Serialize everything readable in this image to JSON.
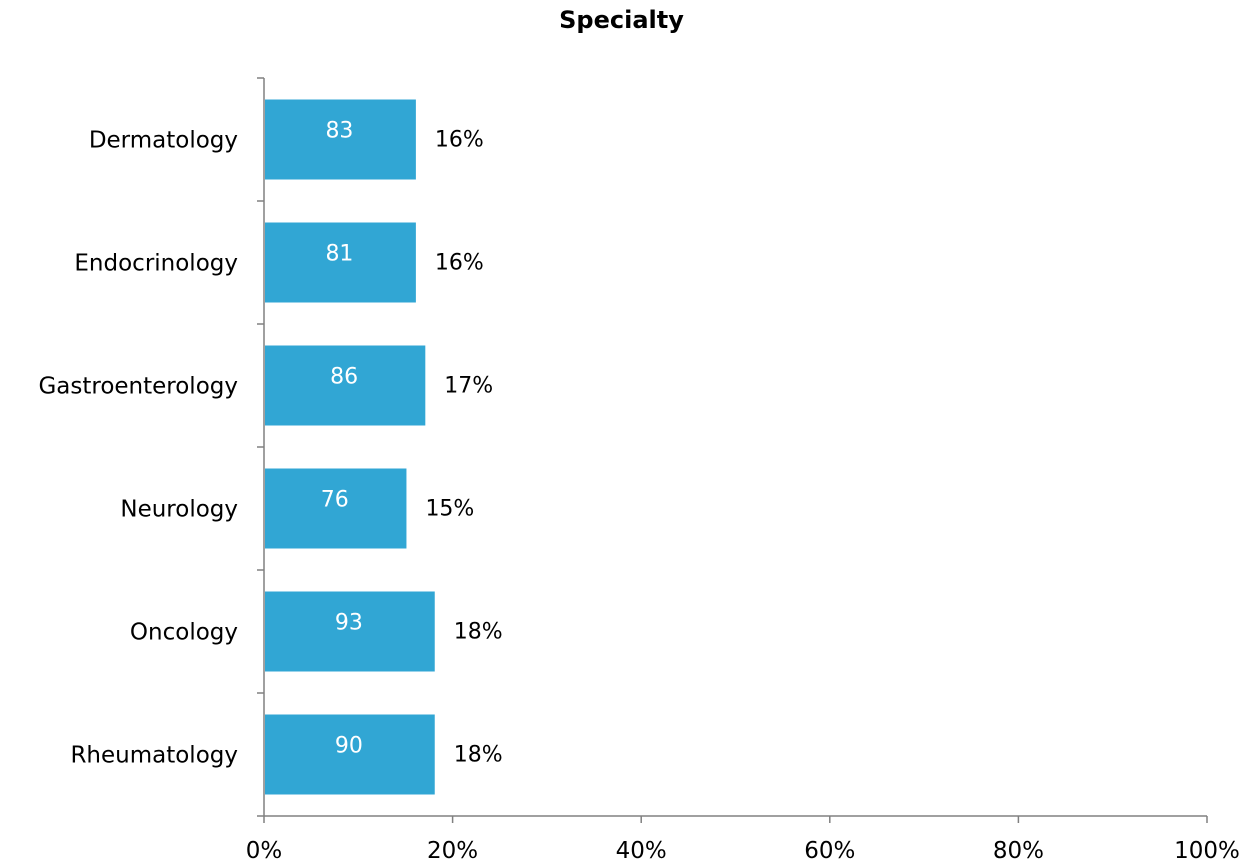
{
  "chart_data": {
    "type": "bar",
    "orientation": "horizontal",
    "title": "Specialty",
    "xlabel": "",
    "ylabel": "",
    "categories": [
      "Dermatology",
      "Endocrinology",
      "Gastroenterology",
      "Neurology",
      "Oncology",
      "Rheumatology"
    ],
    "values": [
      16,
      16,
      17,
      15,
      18,
      18
    ],
    "counts": [
      83,
      81,
      86,
      76,
      93,
      90
    ],
    "percent_labels": [
      "16%",
      "16%",
      "17%",
      "15%",
      "18%",
      "18%"
    ],
    "count_labels": [
      "83",
      "81",
      "86",
      "76",
      "93",
      "90"
    ],
    "xlim": [
      0,
      100
    ],
    "x_ticks": [
      0,
      20,
      40,
      60,
      80,
      100
    ],
    "x_tick_labels": [
      "0%",
      "20%",
      "40%",
      "60%",
      "80%",
      "100%"
    ],
    "grid": false,
    "legend": "none",
    "colors": {
      "bar": "#31A6D4",
      "axis": "#808080",
      "text": "#000000",
      "bar_label": "#ffffff"
    }
  }
}
